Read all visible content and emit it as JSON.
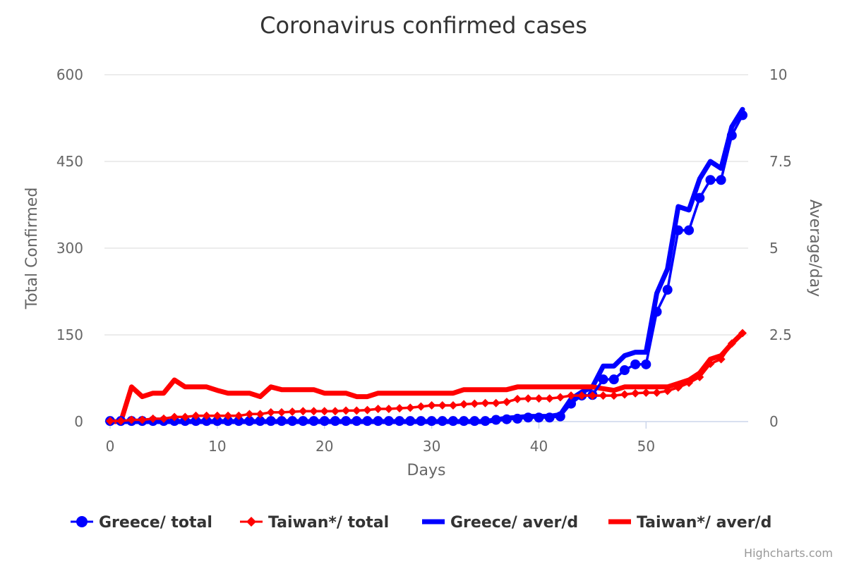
{
  "chart_data": {
    "type": "line",
    "title": "Coronavirus confirmed cases",
    "xlabel": "Days",
    "ylabel": "Total Confirmed",
    "y2label": "Average/day",
    "xlim": [
      0,
      59
    ],
    "ylim": [
      0,
      600
    ],
    "y2lim": [
      0,
      10
    ],
    "x_ticks": [
      "0",
      "10",
      "20",
      "30",
      "40",
      "50"
    ],
    "y_ticks": [
      "0",
      "150",
      "300",
      "450",
      "600"
    ],
    "y2_ticks": [
      "0",
      "2.5",
      "5",
      "7.5",
      "10"
    ],
    "grid": true,
    "legend": "bottom",
    "series": [
      {
        "name": "Greece/ total",
        "axis": "left",
        "marker": "circle",
        "color": "#0000ff",
        "x": [
          0,
          1,
          2,
          3,
          4,
          5,
          6,
          7,
          8,
          9,
          10,
          11,
          12,
          13,
          14,
          15,
          16,
          17,
          18,
          19,
          20,
          21,
          22,
          23,
          24,
          25,
          26,
          27,
          28,
          29,
          30,
          31,
          32,
          33,
          34,
          35,
          36,
          37,
          38,
          39,
          40,
          41,
          42,
          43,
          44,
          45,
          46,
          47,
          48,
          49,
          50,
          51,
          52,
          53,
          54,
          55,
          56,
          57,
          58,
          59
        ],
        "y": [
          1,
          1,
          1,
          1,
          1,
          1,
          1,
          1,
          1,
          1,
          1,
          1,
          1,
          1,
          1,
          1,
          1,
          1,
          1,
          1,
          1,
          1,
          1,
          1,
          1,
          1,
          1,
          1,
          1,
          1,
          1,
          1,
          1,
          1,
          1,
          1,
          3,
          4,
          5,
          7,
          7,
          7,
          9,
          31,
          45,
          46,
          73,
          73,
          89,
          99,
          99,
          190,
          228,
          331,
          331,
          387,
          418,
          418,
          495,
          530
        ]
      },
      {
        "name": "Taiwan*/ total",
        "axis": "left",
        "marker": "diamond",
        "color": "#ff0000",
        "x": [
          0,
          1,
          2,
          3,
          4,
          5,
          6,
          7,
          8,
          9,
          10,
          11,
          12,
          13,
          14,
          15,
          16,
          17,
          18,
          19,
          20,
          21,
          22,
          23,
          24,
          25,
          26,
          27,
          28,
          29,
          30,
          31,
          32,
          33,
          34,
          35,
          36,
          37,
          38,
          39,
          40,
          41,
          42,
          43,
          44,
          45,
          46,
          47,
          48,
          49,
          50,
          51,
          52,
          53,
          54,
          55,
          56,
          57,
          58,
          59
        ],
        "y": [
          1,
          1,
          3,
          3,
          5,
          5,
          8,
          8,
          10,
          10,
          10,
          10,
          10,
          13,
          13,
          16,
          16,
          17,
          18,
          18,
          18,
          18,
          19,
          19,
          20,
          22,
          22,
          23,
          24,
          26,
          28,
          28,
          28,
          30,
          31,
          32,
          32,
          34,
          39,
          40,
          40,
          40,
          42,
          45,
          45,
          45,
          45,
          45,
          47,
          49,
          50,
          50,
          53,
          59,
          67,
          77,
          100,
          108,
          135,
          153
        ]
      },
      {
        "name": "Greece/ aver/d",
        "axis": "right",
        "marker": "none",
        "color": "#0000ff",
        "x": [
          0,
          1,
          2,
          3,
          4,
          5,
          6,
          7,
          8,
          9,
          10,
          11,
          12,
          13,
          14,
          15,
          16,
          17,
          18,
          19,
          20,
          21,
          22,
          23,
          24,
          25,
          26,
          27,
          28,
          29,
          30,
          31,
          32,
          33,
          34,
          35,
          36,
          37,
          38,
          39,
          40,
          41,
          42,
          43,
          44,
          45,
          46,
          47,
          48,
          49,
          50,
          51,
          52,
          53,
          54,
          55,
          56,
          57,
          58,
          59
        ],
        "y": [
          0,
          0,
          0,
          0,
          0,
          0,
          0,
          0,
          0,
          0,
          0,
          0,
          0,
          0,
          0,
          0,
          0,
          0,
          0,
          0,
          0,
          0,
          0,
          0,
          0,
          0,
          0,
          0,
          0,
          0,
          0,
          0,
          0,
          0,
          0,
          0,
          0.05,
          0.1,
          0.12,
          0.15,
          0.15,
          0.15,
          0.2,
          0.65,
          0.85,
          1.0,
          1.6,
          1.6,
          1.9,
          2.0,
          2.0,
          3.7,
          4.4,
          6.2,
          6.1,
          7.0,
          7.5,
          7.3,
          8.5,
          9.0
        ]
      },
      {
        "name": "Taiwan*/ aver/d",
        "axis": "right",
        "marker": "none",
        "color": "#ff0000",
        "x": [
          0,
          1,
          2,
          3,
          4,
          5,
          6,
          7,
          8,
          9,
          10,
          11,
          12,
          13,
          14,
          15,
          16,
          17,
          18,
          19,
          20,
          21,
          22,
          23,
          24,
          25,
          26,
          27,
          28,
          29,
          30,
          31,
          32,
          33,
          34,
          35,
          36,
          37,
          38,
          39,
          40,
          41,
          42,
          43,
          44,
          45,
          46,
          47,
          48,
          49,
          50,
          51,
          52,
          53,
          54,
          55,
          56,
          57,
          58,
          59
        ],
        "y": [
          0,
          0,
          1.0,
          0.72,
          0.82,
          0.82,
          1.2,
          1.0,
          1.0,
          1.0,
          0.9,
          0.82,
          0.82,
          0.82,
          0.72,
          1.0,
          0.92,
          0.92,
          0.92,
          0.92,
          0.82,
          0.82,
          0.82,
          0.72,
          0.72,
          0.82,
          0.82,
          0.82,
          0.82,
          0.82,
          0.82,
          0.82,
          0.82,
          0.92,
          0.92,
          0.92,
          0.92,
          0.92,
          1.0,
          1.0,
          1.0,
          1.0,
          1.0,
          1.0,
          1.0,
          1.0,
          0.95,
          0.9,
          1.0,
          1.0,
          1.0,
          1.0,
          1.0,
          1.1,
          1.2,
          1.4,
          1.8,
          1.9,
          2.25,
          2.55
        ]
      }
    ]
  },
  "credits": "Highcharts.com"
}
